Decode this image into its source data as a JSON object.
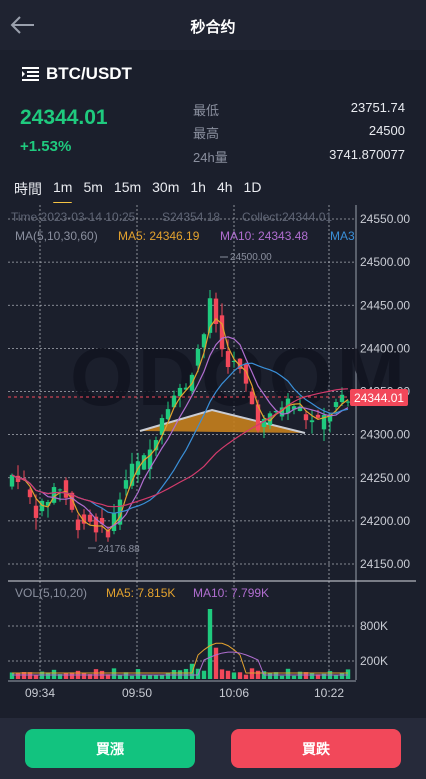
{
  "header": {
    "title": "秒合约",
    "back_icon": "arrow-left-icon"
  },
  "pair": {
    "name": "BTC/USDT",
    "menu_icon": "list-menu-icon"
  },
  "ticker": {
    "price": "24344.01",
    "change": "+1.53%",
    "stats": [
      {
        "label": "最低",
        "value": "23751.74"
      },
      {
        "label": "最高",
        "value": "24500"
      },
      {
        "label": "24h量",
        "value": "3741.870077"
      }
    ]
  },
  "timeframes": {
    "tabs": [
      "時間",
      "1m",
      "5m",
      "15m",
      "30m",
      "1h",
      "4h",
      "1D"
    ],
    "active": "1m"
  },
  "chart_info": {
    "time_line": "Time:2023-03-14 10:25",
    "s_value": "S24354.18",
    "collect": "Collect:24344.01",
    "ma_label": "MA(5,10,30,60)",
    "ma5": "MA5: 24346.19",
    "ma10": "MA10: 24343.48",
    "ma30": "MA3",
    "vol_label": "VOL(5,10,20)",
    "vol_ma5": "MA5: 7.815K",
    "vol_ma10": "MA10: 7.799K",
    "high_marker": "24500.00",
    "low_marker": "24176.88",
    "current_price_tag": "24344.01",
    "watermark": "ODOOM"
  },
  "colors": {
    "up": "#1fca7e",
    "down": "#f2485a",
    "ma5": "#e3a22e",
    "ma10": "#b06ed0",
    "ma30": "#3a8fd8",
    "ma60": "#d43b6c"
  },
  "chart_data": {
    "type": "candlestick",
    "price_axis": {
      "ticks": [
        "24550.00",
        "24500.00",
        "24450.00",
        "24400.00",
        "24350.00",
        "24300.00",
        "24250.00",
        "24200.00",
        "24150.00"
      ],
      "range": [
        24135,
        24560
      ]
    },
    "volume_axis": {
      "ticks": [
        "800K",
        "200K"
      ]
    },
    "time_axis": [
      "09:34",
      "09:50",
      "10:06",
      "10:22"
    ]
  },
  "actions": {
    "buy_up": "買漲",
    "buy_down": "買跌"
  }
}
